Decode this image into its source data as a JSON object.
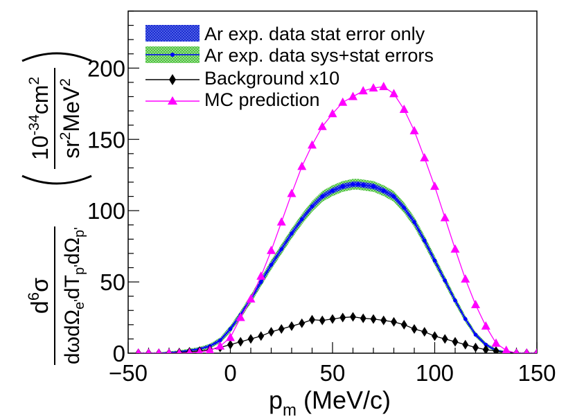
{
  "chart_data": {
    "type": "line",
    "xlabel": {
      "main": "p",
      "sub": "m",
      "unit": " (MeV/c)"
    },
    "ylabel": {
      "numerator": {
        "d": "d",
        "exp": "6",
        "sigma": "σ"
      },
      "denominator": {
        "p1": "dωdΩ",
        "s1": "e'",
        "p2": "dT",
        "s2": "p'",
        "p3": "dΩ",
        "s3": "p'"
      },
      "unit_numerator": {
        "a": "10",
        "exp": "-34",
        "b": "cm",
        "exp2": "2"
      },
      "unit_denominator": {
        "a": "sr",
        "exp": "2",
        "b": "MeV",
        "exp2": "2"
      }
    },
    "xlim": [
      -50,
      150
    ],
    "ylim": [
      0,
      240
    ],
    "xticks": [
      -50,
      0,
      50,
      100,
      150
    ],
    "xtick_labels": [
      "−50",
      "0",
      "50",
      "100",
      "150"
    ],
    "yticks": [
      0,
      50,
      100,
      150,
      200
    ],
    "ytick_labels": [
      "0",
      "50",
      "100",
      "150",
      "200"
    ],
    "legend": [
      {
        "label": "Ar exp. data stat error only",
        "style": "stat"
      },
      {
        "label": "Ar exp. data sys+stat errors",
        "style": "sys"
      },
      {
        "label": "Background x10",
        "style": "bkg"
      },
      {
        "label": "MC prediction",
        "style": "mc"
      }
    ],
    "series": [
      {
        "name": "Ar exp. data",
        "color": "#0000ff",
        "band_stat_color": "#2233cc",
        "band_sys_color": "#66cc55",
        "x": [
          -45,
          -40,
          -35,
          -30,
          -25,
          -20,
          -15,
          -10,
          -5,
          0,
          5,
          10,
          15,
          20,
          25,
          30,
          35,
          40,
          45,
          50,
          55,
          60,
          62.5,
          65,
          70,
          75,
          80,
          85,
          90,
          95,
          100,
          105,
          110,
          115,
          120,
          125,
          130,
          135,
          140,
          145,
          150
        ],
        "y": [
          0,
          0,
          0,
          0.5,
          1,
          2,
          3,
          5,
          9,
          17,
          27,
          38,
          50,
          62,
          73,
          84,
          94,
          103,
          110,
          114,
          117,
          118.5,
          118.5,
          118,
          117,
          114,
          110,
          102,
          92,
          79,
          65,
          51,
          37,
          24,
          13,
          6,
          2,
          0.5,
          0,
          0,
          0
        ],
        "stat_err": [
          0.3,
          0.3,
          0.3,
          0.4,
          0.5,
          0.6,
          0.8,
          1,
          1.2,
          1.4,
          1.6,
          1.8,
          1.9,
          2,
          2,
          2,
          2,
          2,
          2,
          2,
          2,
          2,
          2,
          2,
          2,
          2,
          2,
          2,
          2,
          2,
          2,
          1.8,
          1.6,
          1.4,
          1.2,
          1,
          0.7,
          0.4,
          0.3,
          0.3,
          0.3
        ],
        "sys_err": [
          0.6,
          0.6,
          0.6,
          0.8,
          1,
          1.2,
          1.4,
          1.7,
          2,
          2.4,
          2.7,
          3,
          3.2,
          3.4,
          3.5,
          3.6,
          3.7,
          3.8,
          3.8,
          3.8,
          3.8,
          3.8,
          3.8,
          3.8,
          3.8,
          3.8,
          3.8,
          3.7,
          3.6,
          3.5,
          3.3,
          3,
          2.7,
          2.3,
          1.9,
          1.5,
          1.1,
          0.8,
          0.6,
          0.6,
          0.6
        ]
      },
      {
        "name": "Background x10",
        "color": "#000000",
        "x": [
          -45,
          -40,
          -35,
          -30,
          -25,
          -20,
          -15,
          -10,
          -5,
          0,
          5,
          10,
          15,
          20,
          25,
          30,
          35,
          40,
          45,
          50,
          55,
          60,
          65,
          70,
          75,
          80,
          85,
          90,
          95,
          100,
          105,
          110,
          115,
          120,
          125,
          130,
          135,
          140,
          145,
          150
        ],
        "y": [
          0,
          0,
          0,
          0,
          0.5,
          1,
          1.5,
          2.5,
          4,
          6,
          8,
          10,
          12,
          15,
          17,
          19,
          21,
          23.5,
          23,
          24,
          25,
          25.5,
          24.5,
          24,
          23,
          22,
          20,
          17,
          15,
          12,
          10,
          8,
          6,
          4,
          2.5,
          1.5,
          0.5,
          0,
          0,
          0
        ]
      },
      {
        "name": "MC prediction",
        "color": "#ff00ff",
        "x": [
          -45,
          -40,
          -35,
          -30,
          -25,
          -20,
          -15,
          -10,
          -5,
          0,
          5,
          10,
          15,
          20,
          25,
          30,
          35,
          40,
          45,
          50,
          55,
          60,
          65,
          70,
          75,
          80,
          85,
          90,
          95,
          100,
          105,
          110,
          115,
          120,
          125,
          130,
          135,
          140,
          145,
          150
        ],
        "y": [
          0,
          0,
          0,
          0,
          0,
          0.3,
          0.8,
          2,
          5,
          11,
          25,
          38,
          54,
          72,
          92,
          112,
          131,
          146,
          159,
          168,
          176,
          180,
          184,
          186,
          187,
          182,
          171,
          156,
          137,
          117,
          95,
          73,
          52,
          34,
          19,
          7,
          2,
          0,
          0,
          0
        ]
      }
    ]
  },
  "colors": {
    "stat_band": "#2233cc",
    "sys_band": "#66cc55",
    "data_line": "#0000ff",
    "bkg": "#000000",
    "mc": "#ff00ff"
  }
}
